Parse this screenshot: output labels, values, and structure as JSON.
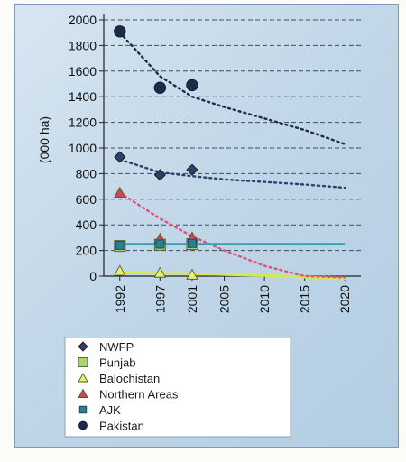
{
  "chart_data": {
    "type": "scatter",
    "ylabel": "(000 ha)",
    "xlabel": "",
    "title": "",
    "ylim": [
      0,
      2000
    ],
    "yticks": [
      0,
      200,
      400,
      600,
      800,
      1000,
      1200,
      1400,
      1600,
      1800,
      2000
    ],
    "xlim": [
      1990,
      2022
    ],
    "xticks": [
      1992,
      1997,
      2001,
      2005,
      2010,
      2015,
      2020
    ],
    "grid": "horizontal dashed",
    "legend_position": "bottom",
    "series": [
      {
        "name": "NWFP",
        "marker": "diamond",
        "color": "#2f3e6e",
        "points": [
          [
            1992,
            930
          ],
          [
            1997,
            790
          ],
          [
            2001,
            830
          ]
        ],
        "trend": [
          [
            1992,
            910
          ],
          [
            1997,
            810
          ],
          [
            2001,
            780
          ],
          [
            2005,
            755
          ],
          [
            2010,
            735
          ],
          [
            2015,
            715
          ],
          [
            2020,
            690
          ]
        ]
      },
      {
        "name": "Punjab",
        "marker": "square",
        "color": "#a8d46a",
        "points": [
          [
            1992,
            235
          ],
          [
            1997,
            245
          ],
          [
            2001,
            250
          ]
        ],
        "trend": []
      },
      {
        "name": "Balochistan",
        "marker": "triangle",
        "color": "#e4f077",
        "points": [
          [
            1992,
            40
          ],
          [
            1997,
            25
          ],
          [
            2001,
            10
          ]
        ],
        "trend": [
          [
            1992,
            30
          ],
          [
            2001,
            18
          ],
          [
            2010,
            5
          ],
          [
            2020,
            -20
          ]
        ]
      },
      {
        "name": "Northern Areas",
        "marker": "triangle",
        "color": "#c9485b",
        "points": [
          [
            1992,
            650
          ],
          [
            1997,
            290
          ],
          [
            2001,
            300
          ]
        ],
        "trend": [
          [
            1992,
            650
          ],
          [
            1997,
            450
          ],
          [
            2001,
            310
          ],
          [
            2005,
            200
          ],
          [
            2010,
            80
          ],
          [
            2015,
            0
          ],
          [
            2020,
            -10
          ]
        ]
      },
      {
        "name": "AJK",
        "marker": "square-small",
        "color": "#2f7d94",
        "points": [
          [
            1992,
            240
          ],
          [
            1997,
            250
          ],
          [
            2001,
            255
          ]
        ],
        "trend_line": [
          [
            1992,
            250
          ],
          [
            2020,
            250
          ]
        ]
      },
      {
        "name": "Pakistan",
        "marker": "circle",
        "color": "#1e2a4a",
        "points": [
          [
            1992,
            1910
          ],
          [
            1997,
            1470
          ],
          [
            2001,
            1490
          ]
        ],
        "trend": [
          [
            1992,
            1900
          ],
          [
            1997,
            1560
          ],
          [
            2001,
            1400
          ],
          [
            2005,
            1320
          ],
          [
            2010,
            1230
          ],
          [
            2015,
            1140
          ],
          [
            2020,
            1030
          ]
        ]
      }
    ]
  },
  "legend": {
    "items": [
      {
        "label": "NWFP",
        "icon": "diamond-icon"
      },
      {
        "label": "Punjab",
        "icon": "square-icon"
      },
      {
        "label": "Balochistan",
        "icon": "triangle-outline-icon"
      },
      {
        "label": "Northern Areas",
        "icon": "triangle-icon"
      },
      {
        "label": "AJK",
        "icon": "square-small-icon"
      },
      {
        "label": "Pakistan",
        "icon": "circle-icon"
      }
    ]
  }
}
